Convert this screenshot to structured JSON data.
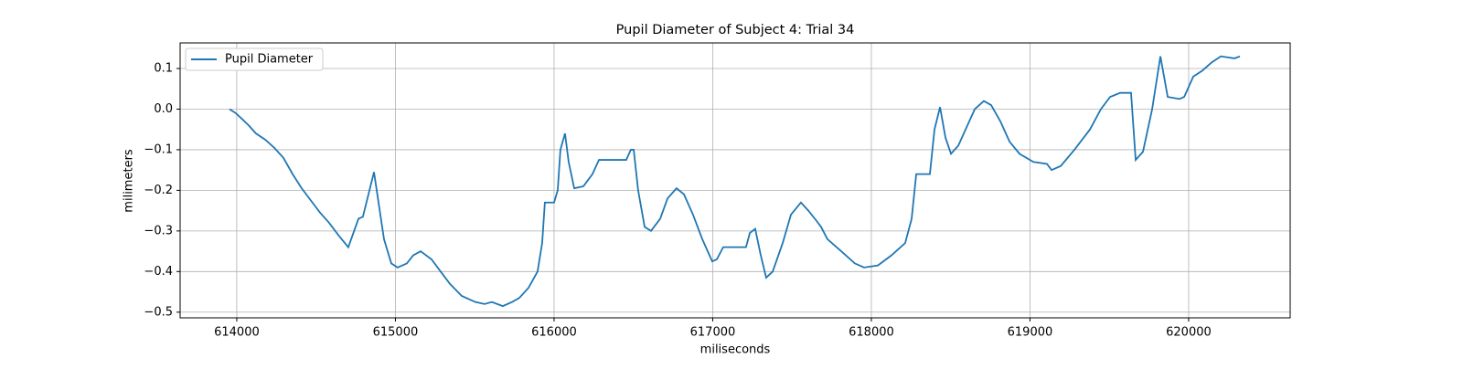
{
  "chart_data": {
    "type": "line",
    "title": "Pupil Diameter of Subject 4: Trial 34",
    "x_label": "miliseconds",
    "y_label": "milimeters",
    "xlim": [
      613643,
      620640
    ],
    "ylim": [
      -0.514,
      0.163
    ],
    "xticks": [
      614000,
      615000,
      616000,
      617000,
      618000,
      619000,
      620000
    ],
    "yticks": [
      {
        "value": -0.5,
        "label": "−0.5"
      },
      {
        "value": -0.4,
        "label": "−0.4"
      },
      {
        "value": -0.3,
        "label": "−0.3"
      },
      {
        "value": -0.2,
        "label": "−0.2"
      },
      {
        "value": -0.1,
        "label": "−0.1"
      },
      {
        "value": 0,
        "label": "0.0"
      },
      0.1
    ],
    "grid": true,
    "legend": "upper left",
    "x": [
      613954,
      613994,
      614035,
      614075,
      614121,
      614179,
      614236,
      614294,
      614352,
      614409,
      614467,
      614525,
      614582,
      614640,
      614703,
      614767,
      614795,
      614865,
      614928,
      614974,
      615014,
      615072,
      615112,
      615159,
      615228,
      615285,
      615343,
      615418,
      615504,
      615562,
      615608,
      615677,
      615735,
      615781,
      615839,
      615896,
      615925,
      615942,
      616000,
      616023,
      616040,
      616069,
      616092,
      616127,
      616185,
      616242,
      616283,
      616455,
      616484,
      616502,
      616530,
      616571,
      616611,
      616669,
      616715,
      616772,
      616819,
      616876,
      616934,
      616997,
      617026,
      617066,
      617210,
      617234,
      617268,
      617303,
      617337,
      617378,
      617441,
      617493,
      617556,
      617603,
      617654,
      617683,
      617723,
      617810,
      617896,
      617954,
      618041,
      618127,
      618213,
      618254,
      618283,
      618369,
      618398,
      618433,
      618467,
      618502,
      618548,
      618594,
      618652,
      618709,
      618755,
      618813,
      618871,
      618934,
      619021,
      619107,
      619136,
      619194,
      619280,
      619378,
      619447,
      619505,
      619568,
      619637,
      619666,
      619712,
      619770,
      619822,
      619868,
      619943,
      619972,
      620029,
      620087,
      620145,
      620203,
      620289,
      620323
    ],
    "series": [
      {
        "name": "Pupil Diameter",
        "color": "#1f77b4",
        "values": [
          0.0,
          -0.01,
          -0.025,
          -0.04,
          -0.06,
          -0.075,
          -0.095,
          -0.12,
          -0.16,
          -0.195,
          -0.225,
          -0.255,
          -0.28,
          -0.31,
          -0.34,
          -0.27,
          -0.265,
          -0.155,
          -0.32,
          -0.38,
          -0.39,
          -0.38,
          -0.36,
          -0.35,
          -0.37,
          -0.4,
          -0.43,
          -0.46,
          -0.475,
          -0.48,
          -0.475,
          -0.485,
          -0.475,
          -0.465,
          -0.44,
          -0.4,
          -0.33,
          -0.23,
          -0.23,
          -0.2,
          -0.1,
          -0.06,
          -0.13,
          -0.195,
          -0.19,
          -0.16,
          -0.125,
          -0.125,
          -0.1,
          -0.1,
          -0.2,
          -0.29,
          -0.3,
          -0.27,
          -0.22,
          -0.195,
          -0.21,
          -0.26,
          -0.32,
          -0.375,
          -0.37,
          -0.34,
          -0.34,
          -0.305,
          -0.295,
          -0.36,
          -0.415,
          -0.4,
          -0.33,
          -0.26,
          -0.23,
          -0.25,
          -0.275,
          -0.29,
          -0.32,
          -0.35,
          -0.38,
          -0.39,
          -0.385,
          -0.36,
          -0.33,
          -0.27,
          -0.16,
          -0.16,
          -0.05,
          0.005,
          -0.07,
          -0.11,
          -0.09,
          -0.05,
          0.0,
          0.02,
          0.01,
          -0.03,
          -0.08,
          -0.11,
          -0.13,
          -0.135,
          -0.15,
          -0.14,
          -0.1,
          -0.05,
          0.0,
          0.03,
          0.04,
          0.04,
          -0.125,
          -0.105,
          0.0,
          0.13,
          0.03,
          0.025,
          0.03,
          0.08,
          0.095,
          0.115,
          0.13,
          0.125,
          0.13
        ]
      }
    ]
  }
}
